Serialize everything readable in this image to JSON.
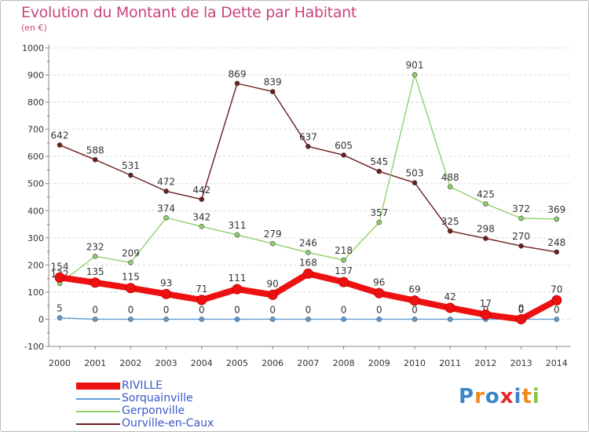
{
  "header": {
    "title": "Evolution du Montant de la Dette par Habitant",
    "unit": "(en €)"
  },
  "logo": {
    "letters": [
      "P",
      "r",
      "o",
      "x",
      "i",
      "t",
      "i"
    ],
    "colors": [
      "#3b86c8",
      "#f08a1c",
      "#3b86c8",
      "#e8262a",
      "#3b86c8",
      "#f08a1c",
      "#8bc53f"
    ]
  },
  "chart_data": {
    "type": "line",
    "title": "Evolution du Montant de la Dette par Habitant",
    "ylabel": "(en €)",
    "xlabel": "",
    "x": [
      "2000",
      "2001",
      "2002",
      "2003",
      "2004",
      "2005",
      "2006",
      "2007",
      "2008",
      "2009",
      "2010",
      "2011",
      "2012",
      "2013",
      "2014"
    ],
    "ylim": [
      -100,
      1000
    ],
    "yticks": [
      "-100",
      "0",
      "100",
      "200",
      "300",
      "400",
      "500",
      "600",
      "700",
      "800",
      "900",
      "1000"
    ],
    "grid": "horizontal dashed",
    "legend": "bottom-left",
    "series": [
      {
        "name": "Ourville-en-Caux",
        "color": "#6b1e1e",
        "values": [
          642,
          588,
          531,
          472,
          442,
          869,
          839,
          637,
          605,
          545,
          503,
          325,
          298,
          270,
          248
        ],
        "labels": [
          "642",
          "588",
          "531",
          "472",
          "442",
          "869",
          "839",
          "637",
          "605",
          "545",
          "503",
          "325",
          "298",
          "270",
          "248"
        ]
      },
      {
        "name": "Gerponville",
        "color": "#8fd16a",
        "values": [
          132,
          232,
          209,
          374,
          342,
          311,
          279,
          246,
          218,
          357,
          901,
          488,
          425,
          372,
          369
        ],
        "labels": [
          "132",
          "232",
          "209",
          "374",
          "342",
          "311",
          "279",
          "246",
          "218",
          "357",
          "901",
          "488",
          "425",
          "372",
          "369"
        ]
      },
      {
        "name": "Sorquainville",
        "color": "#5d9fd6",
        "values": [
          5,
          0,
          0,
          0,
          0,
          0,
          0,
          0,
          0,
          0,
          0,
          0,
          0,
          0,
          0
        ],
        "labels": [
          "5",
          "0",
          "0",
          "0",
          "0",
          "0",
          "0",
          "0",
          "0",
          "0",
          "0",
          "0",
          "0",
          "0",
          "0"
        ]
      },
      {
        "name": "RIVILLE",
        "color": "#ee1111",
        "values": [
          154,
          135,
          115,
          93,
          71,
          111,
          90,
          168,
          137,
          96,
          69,
          42,
          17,
          0,
          70
        ],
        "labels": [
          "154",
          "135",
          "115",
          "93",
          "71",
          "111",
          "90",
          "168",
          "137",
          "96",
          "69",
          "42",
          "17",
          "0",
          "70"
        ]
      }
    ],
    "legend_order": [
      "RIVILLE",
      "Sorquainville",
      "Gerponville",
      "Ourville-en-Caux"
    ]
  }
}
